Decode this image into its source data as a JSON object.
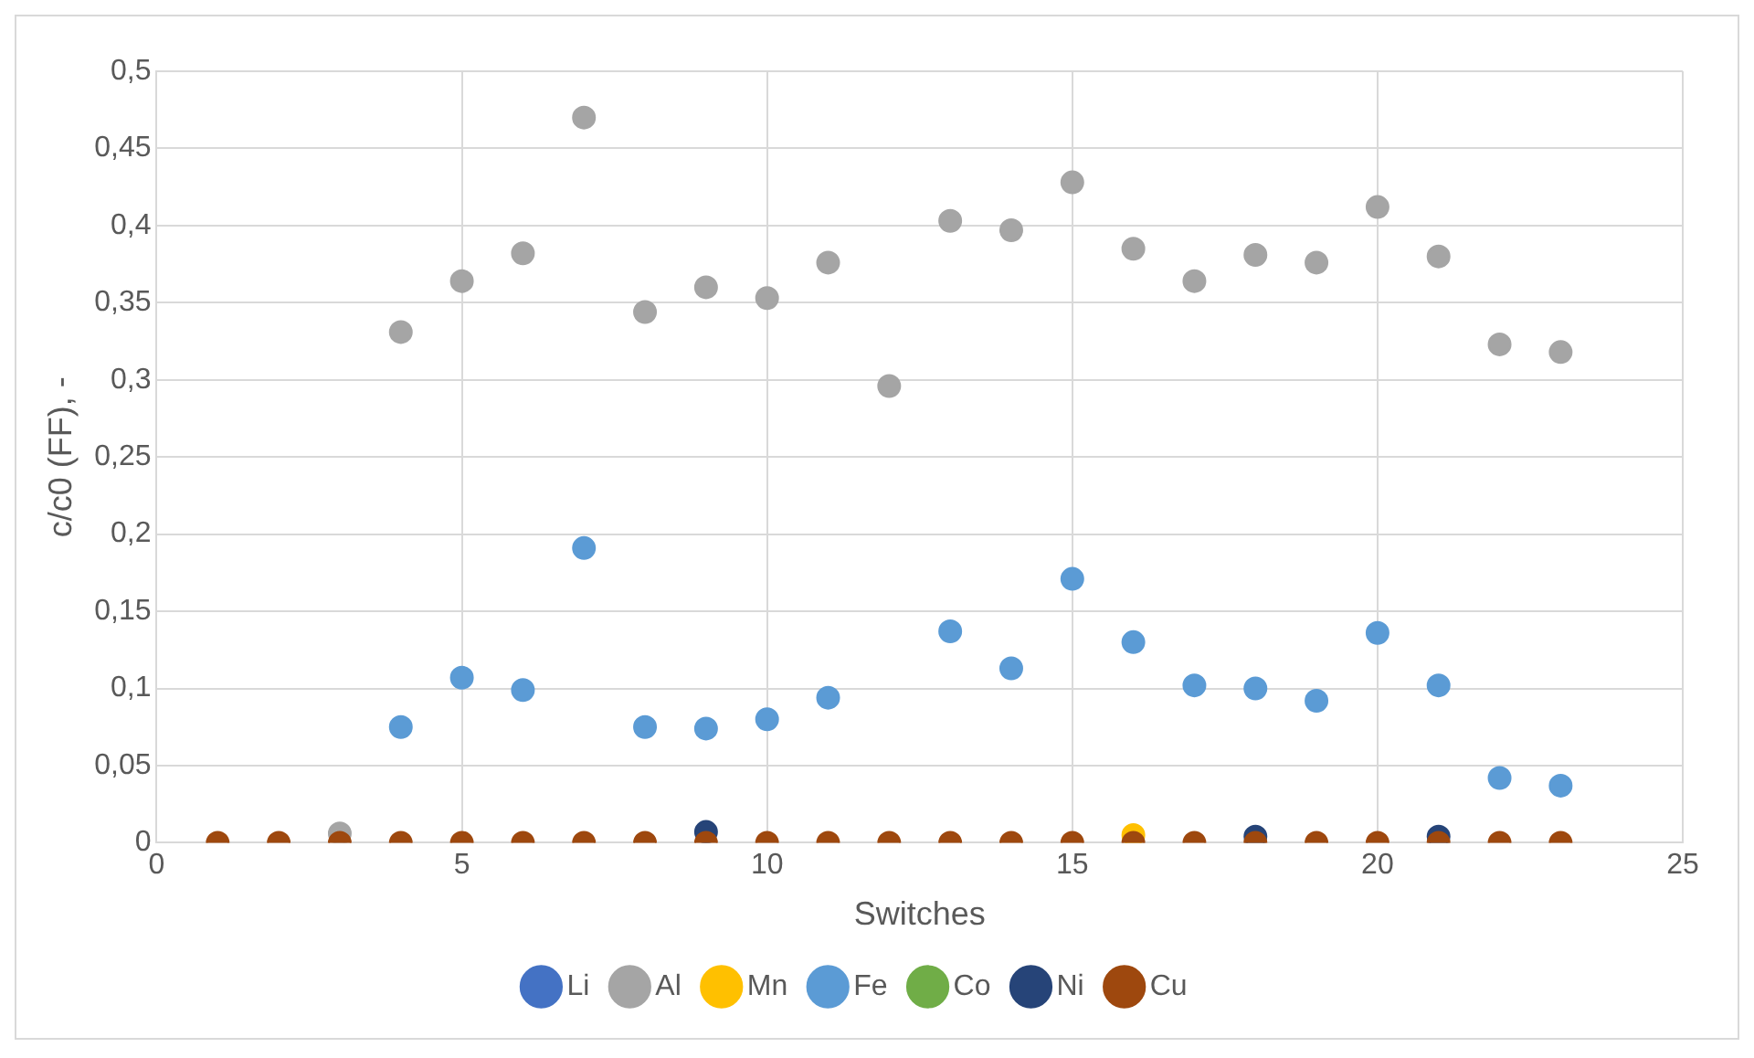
{
  "chart_data": {
    "type": "scatter",
    "xlabel": "Switches",
    "ylabel": "c/c0 (FF), -",
    "x": [
      1,
      2,
      3,
      4,
      5,
      6,
      7,
      8,
      9,
      10,
      11,
      12,
      13,
      14,
      15,
      16,
      17,
      18,
      19,
      20,
      21,
      22,
      23
    ],
    "xlim": [
      0,
      25
    ],
    "xticks": [
      0,
      5,
      10,
      15,
      20,
      25
    ],
    "ylim": [
      0,
      0.5
    ],
    "yticks": [
      0,
      {
        "value": 0.05,
        "label": "0,05"
      },
      {
        "value": 0.1,
        "label": "0,1"
      },
      {
        "value": 0.15,
        "label": "0,15"
      },
      {
        "value": 0.2,
        "label": "0,2"
      },
      {
        "value": 0.25,
        "label": "0,25"
      },
      {
        "value": 0.3,
        "label": "0,3"
      },
      {
        "value": 0.35,
        "label": "0,35"
      },
      {
        "value": 0.4,
        "label": "0,4"
      },
      {
        "value": 0.45,
        "label": "0,45"
      },
      {
        "value": 0.5,
        "label": "0,5"
      }
    ],
    "grid": true,
    "legend": "bottom",
    "marker": "circle",
    "series": [
      {
        "name": "Li",
        "color": "#4472c4",
        "values": [
          null,
          null,
          null,
          null,
          null,
          null,
          null,
          null,
          null,
          null,
          null,
          null,
          null,
          null,
          null,
          null,
          null,
          null,
          null,
          null,
          null,
          null,
          null
        ]
      },
      {
        "name": "Al",
        "color": "#a5a5a5",
        "values": [
          null,
          null,
          0.006,
          0.331,
          0.364,
          0.382,
          0.47,
          0.344,
          0.36,
          0.353,
          0.376,
          0.296,
          0.403,
          0.397,
          0.428,
          0.385,
          0.364,
          0.381,
          0.376,
          0.412,
          0.38,
          0.323,
          0.318
        ]
      },
      {
        "name": "Mn",
        "color": "#ffc000",
        "values": [
          null,
          null,
          null,
          null,
          null,
          null,
          null,
          null,
          null,
          null,
          null,
          null,
          null,
          null,
          null,
          0.005,
          null,
          null,
          null,
          null,
          null,
          null,
          null
        ]
      },
      {
        "name": "Fe",
        "color": "#5b9bd5",
        "values": [
          null,
          null,
          null,
          0.075,
          0.107,
          0.099,
          0.191,
          0.075,
          0.074,
          0.08,
          0.094,
          null,
          0.137,
          0.113,
          0.171,
          0.13,
          0.102,
          0.1,
          0.092,
          0.136,
          0.102,
          0.042,
          0.037
        ]
      },
      {
        "name": "Co",
        "color": "#70ad47",
        "values": [
          null,
          null,
          null,
          null,
          null,
          null,
          null,
          null,
          null,
          null,
          null,
          null,
          null,
          null,
          null,
          null,
          null,
          null,
          null,
          null,
          null,
          null,
          null
        ]
      },
      {
        "name": "Ni",
        "color": "#264478",
        "values": [
          null,
          null,
          null,
          null,
          null,
          null,
          null,
          null,
          0.007,
          null,
          null,
          null,
          null,
          null,
          null,
          null,
          null,
          0.004,
          null,
          null,
          0.004,
          null,
          null
        ]
      },
      {
        "name": "Cu",
        "color": "#9e480e",
        "values": [
          0,
          0,
          0,
          0,
          0,
          0,
          0,
          0,
          0,
          0,
          0,
          0,
          0,
          0,
          0,
          0,
          0,
          0,
          0,
          0,
          0,
          0,
          0
        ]
      }
    ]
  }
}
